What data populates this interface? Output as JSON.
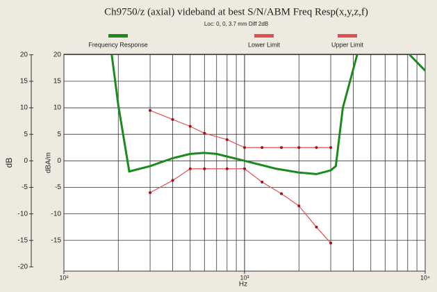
{
  "chart_data": {
    "type": "line",
    "title": "Ch9750/z (axial) videband at best S/N/ABM Freq Resp(x,y,z,f)",
    "subtitle": "Loc: 0, 0, 3.7 mm Diff 2dB",
    "x_label": "Hz",
    "y_label": "dB",
    "y2_label": "dBA/m",
    "xscale": "log",
    "xlim": [
      100,
      10000
    ],
    "xticks": [
      {
        "value": 100,
        "label": "10²"
      },
      {
        "value": 1000,
        "label": "10³"
      },
      {
        "value": 10000,
        "label": "10⁴"
      }
    ],
    "xgrid": [
      200,
      300,
      400,
      500,
      600,
      700,
      800,
      900,
      2000,
      3000,
      4000,
      5000,
      6000,
      7000,
      8000,
      9000
    ],
    "ylim": [
      -20.8,
      20.1
    ],
    "yticks": [
      -20,
      -15,
      -10,
      -5,
      0,
      5,
      10,
      15,
      20
    ],
    "y2lim": [
      -20.8,
      20.1
    ],
    "y2ticks": [
      -15,
      -10,
      -5,
      0,
      5,
      10,
      15,
      20
    ],
    "grid": true,
    "series": [
      {
        "name": "Frequency Response",
        "color": "#1a8a1a",
        "markers": false,
        "x": [
          184,
          200,
          230,
          300,
          400,
          500,
          600,
          700,
          1000,
          1500,
          2000,
          2500,
          3000,
          3200,
          3500,
          4200,
          null,
          8200,
          10000
        ],
        "values": [
          20,
          10.5,
          -2,
          -1,
          0.5,
          1.3,
          1.5,
          1.3,
          0,
          -1.5,
          -2.2,
          -2.5,
          -1.8,
          -1,
          10,
          20,
          null,
          20,
          17
        ]
      },
      {
        "name": "Lower Limit",
        "color": "#e05050",
        "markers": true,
        "x": [
          300,
          400,
          500,
          600,
          800,
          1000,
          1250,
          1600,
          2000,
          2500,
          3000
        ],
        "values": [
          -6,
          -3.7,
          -1.5,
          -1.5,
          -1.5,
          -1.5,
          -4,
          -6.2,
          -8.5,
          -12.5,
          -15.5
        ]
      },
      {
        "name": "Upper Limit",
        "color": "#e05050",
        "markers": true,
        "x": [
          300,
          400,
          500,
          600,
          800,
          1000,
          1250,
          1600,
          2000,
          2500,
          3000
        ],
        "values": [
          9.5,
          7.8,
          6.5,
          5.2,
          4,
          2.5,
          2.5,
          2.5,
          2.5,
          2.5,
          2.5
        ]
      }
    ]
  }
}
